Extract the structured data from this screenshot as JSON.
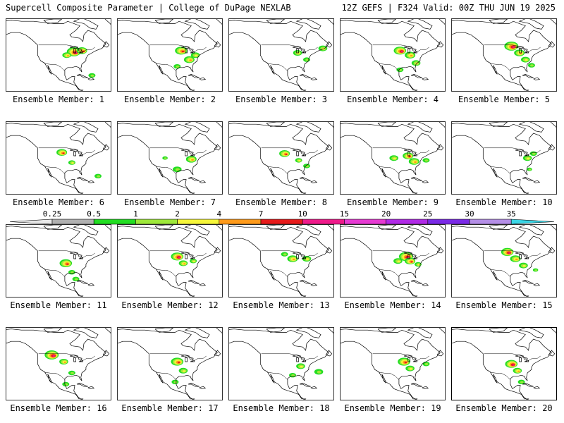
{
  "header": {
    "title_left": "Supercell Composite Parameter | College of DuPage NEXLAB",
    "title_right": "12Z GEFS | F324 Valid: 00Z THU JUN 19 2025"
  },
  "colorbar": {
    "ticks": [
      "0.25",
      "0.5",
      "1",
      "2",
      "4",
      "7",
      "10",
      "15",
      "20",
      "25",
      "30",
      "35"
    ],
    "colors": [
      "#e8e8e8",
      "#b0b0b0",
      "#22dd22",
      "#9ee83a",
      "#f6f63a",
      "#ff9a1a",
      "#e61a1a",
      "#ee1a8a",
      "#e63ad2",
      "#b02ae6",
      "#7a2ae6",
      "#b48ee6",
      "#3ad6e6"
    ]
  },
  "member_label_prefix": "Ensemble Member: ",
  "members": [
    {
      "number": "1",
      "blobs": [
        {
          "lon": -88,
          "lat": 43,
          "size": 8,
          "level": 5
        },
        {
          "lon": -80,
          "lat": 44,
          "size": 6,
          "level": 4
        },
        {
          "lon": -95,
          "lat": 40,
          "size": 5,
          "level": 3
        },
        {
          "lon": -70,
          "lat": 22,
          "size": 4,
          "level": 1
        }
      ]
    },
    {
      "number": "2",
      "blobs": [
        {
          "lon": -92,
          "lat": 44,
          "size": 7,
          "level": 4
        },
        {
          "lon": -84,
          "lat": 36,
          "size": 6,
          "level": 3
        },
        {
          "lon": -78,
          "lat": 40,
          "size": 5,
          "level": 2
        },
        {
          "lon": -96,
          "lat": 30,
          "size": 4,
          "level": 1
        }
      ]
    },
    {
      "number": "3",
      "blobs": [
        {
          "lon": -87,
          "lat": 42,
          "size": 5,
          "level": 2
        },
        {
          "lon": -62,
          "lat": 46,
          "size": 5,
          "level": 2
        },
        {
          "lon": -78,
          "lat": 36,
          "size": 4,
          "level": 1
        }
      ]
    },
    {
      "number": "4",
      "blobs": [
        {
          "lon": -96,
          "lat": 44,
          "size": 7,
          "level": 5
        },
        {
          "lon": -86,
          "lat": 40,
          "size": 6,
          "level": 3
        },
        {
          "lon": -80,
          "lat": 33,
          "size": 5,
          "level": 2
        },
        {
          "lon": -96,
          "lat": 27,
          "size": 4,
          "level": 1
        }
      ]
    },
    {
      "number": "5",
      "blobs": [
        {
          "lon": -96,
          "lat": 48,
          "size": 8,
          "level": 5
        },
        {
          "lon": -88,
          "lat": 42,
          "size": 6,
          "level": 3
        },
        {
          "lon": -82,
          "lat": 36,
          "size": 5,
          "level": 2
        },
        {
          "lon": -76,
          "lat": 31,
          "size": 4,
          "level": 1
        }
      ]
    },
    {
      "number": "6",
      "blobs": [
        {
          "lon": -100,
          "lat": 45,
          "size": 6,
          "level": 4
        },
        {
          "lon": -90,
          "lat": 36,
          "size": 4,
          "level": 2
        },
        {
          "lon": -64,
          "lat": 24,
          "size": 4,
          "level": 1
        }
      ]
    },
    {
      "number": "7",
      "blobs": [
        {
          "lon": -82,
          "lat": 39,
          "size": 6,
          "level": 3
        },
        {
          "lon": -96,
          "lat": 30,
          "size": 5,
          "level": 1
        },
        {
          "lon": -108,
          "lat": 40,
          "size": 3,
          "level": 1
        }
      ]
    },
    {
      "number": "8",
      "blobs": [
        {
          "lon": -100,
          "lat": 44,
          "size": 6,
          "level": 4
        },
        {
          "lon": -86,
          "lat": 38,
          "size": 4,
          "level": 2
        },
        {
          "lon": -78,
          "lat": 33,
          "size": 4,
          "level": 1
        }
      ]
    },
    {
      "number": "9",
      "blobs": [
        {
          "lon": -88,
          "lat": 42,
          "size": 6,
          "level": 4
        },
        {
          "lon": -82,
          "lat": 37,
          "size": 6,
          "level": 3
        },
        {
          "lon": -102,
          "lat": 40,
          "size": 5,
          "level": 2
        },
        {
          "lon": -70,
          "lat": 38,
          "size": 4,
          "level": 1
        }
      ]
    },
    {
      "number": "10",
      "blobs": [
        {
          "lon": -80,
          "lat": 40,
          "size": 5,
          "level": 2
        },
        {
          "lon": -74,
          "lat": 44,
          "size": 4,
          "level": 1
        },
        {
          "lon": -78,
          "lat": 30,
          "size": 3,
          "level": 1
        }
      ]
    },
    {
      "number": "11",
      "blobs": [
        {
          "lon": -96,
          "lat": 38,
          "size": 7,
          "level": 4
        },
        {
          "lon": -90,
          "lat": 30,
          "size": 4,
          "level": 1
        },
        {
          "lon": -86,
          "lat": 24,
          "size": 4,
          "level": 1
        }
      ]
    },
    {
      "number": "12",
      "blobs": [
        {
          "lon": -96,
          "lat": 44,
          "size": 7,
          "level": 5
        },
        {
          "lon": -90,
          "lat": 38,
          "size": 5,
          "level": 3
        },
        {
          "lon": -80,
          "lat": 40,
          "size": 4,
          "level": 2
        }
      ]
    },
    {
      "number": "13",
      "blobs": [
        {
          "lon": -92,
          "lat": 42,
          "size": 6,
          "level": 3
        },
        {
          "lon": -78,
          "lat": 42,
          "size": 5,
          "level": 2
        },
        {
          "lon": -100,
          "lat": 46,
          "size": 4,
          "level": 1
        }
      ]
    },
    {
      "number": "14",
      "blobs": [
        {
          "lon": -90,
          "lat": 44,
          "size": 8,
          "level": 5
        },
        {
          "lon": -86,
          "lat": 40,
          "size": 6,
          "level": 4
        },
        {
          "lon": -98,
          "lat": 40,
          "size": 5,
          "level": 2
        },
        {
          "lon": -78,
          "lat": 37,
          "size": 4,
          "level": 2
        }
      ]
    },
    {
      "number": "15",
      "blobs": [
        {
          "lon": -100,
          "lat": 48,
          "size": 7,
          "level": 5
        },
        {
          "lon": -92,
          "lat": 42,
          "size": 6,
          "level": 3
        },
        {
          "lon": -84,
          "lat": 36,
          "size": 5,
          "level": 2
        },
        {
          "lon": -72,
          "lat": 32,
          "size": 3,
          "level": 1
        }
      ]
    },
    {
      "number": "16",
      "blobs": [
        {
          "lon": -110,
          "lat": 48,
          "size": 8,
          "level": 5
        },
        {
          "lon": -98,
          "lat": 42,
          "size": 5,
          "level": 3
        },
        {
          "lon": -90,
          "lat": 32,
          "size": 4,
          "level": 1
        },
        {
          "lon": -96,
          "lat": 22,
          "size": 4,
          "level": 1
        }
      ]
    },
    {
      "number": "17",
      "blobs": [
        {
          "lon": -96,
          "lat": 42,
          "size": 7,
          "level": 4
        },
        {
          "lon": -90,
          "lat": 34,
          "size": 5,
          "level": 2
        },
        {
          "lon": -98,
          "lat": 24,
          "size": 4,
          "level": 1
        }
      ]
    },
    {
      "number": "18",
      "blobs": [
        {
          "lon": -84,
          "lat": 38,
          "size": 5,
          "level": 2
        },
        {
          "lon": -66,
          "lat": 33,
          "size": 5,
          "level": 1
        },
        {
          "lon": -92,
          "lat": 30,
          "size": 4,
          "level": 1
        }
      ]
    },
    {
      "number": "19",
      "blobs": [
        {
          "lon": -92,
          "lat": 42,
          "size": 7,
          "level": 4
        },
        {
          "lon": -86,
          "lat": 36,
          "size": 5,
          "level": 2
        },
        {
          "lon": -70,
          "lat": 40,
          "size": 4,
          "level": 1
        }
      ]
    },
    {
      "number": "20",
      "blobs": [
        {
          "lon": -96,
          "lat": 40,
          "size": 7,
          "level": 5
        },
        {
          "lon": -90,
          "lat": 34,
          "size": 5,
          "level": 3
        },
        {
          "lon": -86,
          "lat": 24,
          "size": 4,
          "level": 1
        }
      ]
    }
  ],
  "selected_member": "20"
}
